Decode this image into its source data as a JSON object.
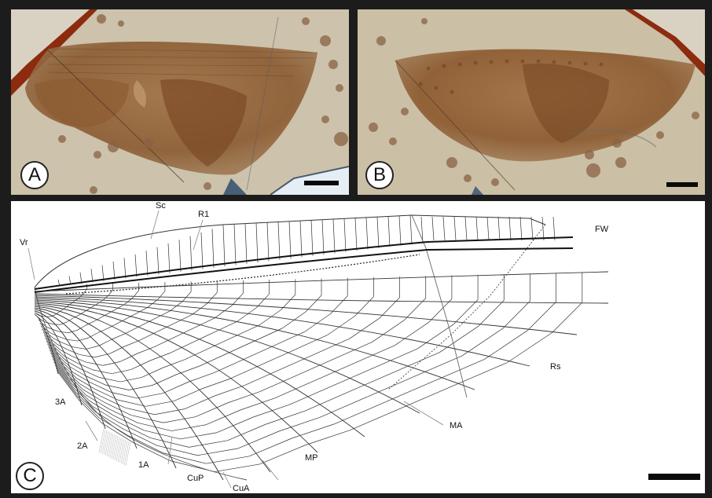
{
  "panels": {
    "a": {
      "label": "A"
    },
    "b": {
      "label": "B"
    },
    "c": {
      "label": "C"
    }
  },
  "vein_labels": {
    "sc": "Sc",
    "r1": "R1",
    "vr": "Vr",
    "fw": "FW",
    "rs": "Rs",
    "ma": "MA",
    "mp": "MP",
    "cua": "CuA",
    "cup": "CuP",
    "a1": "1A",
    "a2": "2A",
    "a3": "3A"
  },
  "colors": {
    "matrix": "#cbbfa7",
    "wing": "#8a5a2e",
    "amber_edge": "#8c2b0e",
    "line": "#2a2a2a"
  }
}
